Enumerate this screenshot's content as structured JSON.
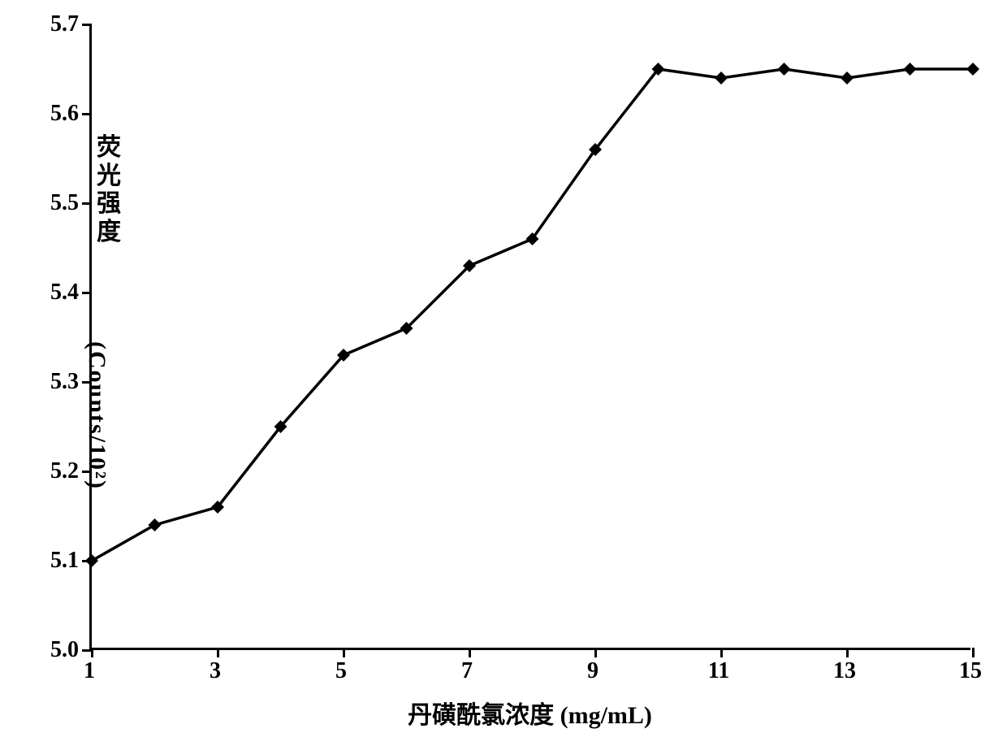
{
  "chart": {
    "type": "line",
    "background_color": "#ffffff",
    "axis_color": "#000000",
    "axis_width": 3,
    "tick_length": 12,
    "x": {
      "title": "丹磺酰氯浓度 (mg/mL)",
      "title_fontsize": 30,
      "min": 1,
      "max": 15,
      "tick_values": [
        1,
        3,
        5,
        7,
        9,
        11,
        13,
        15
      ],
      "tick_labels": [
        "1",
        "3",
        "5",
        "7",
        "9",
        "11",
        "13",
        "15"
      ],
      "label_fontsize": 28
    },
    "y": {
      "title_vertical": "荧光强度",
      "title_paren": "(Counts/10²)",
      "title_fontsize": 30,
      "min": 5.0,
      "max": 5.7,
      "tick_values": [
        5.0,
        5.1,
        5.2,
        5.3,
        5.4,
        5.5,
        5.6,
        5.7
      ],
      "tick_labels": [
        "5.0",
        "5.1",
        "5.2",
        "5.3",
        "5.4",
        "5.5",
        "5.6",
        "5.7"
      ],
      "label_fontsize": 28
    },
    "series": {
      "line_color": "#000000",
      "line_width": 3.5,
      "marker_shape": "diamond",
      "marker_fill": "#000000",
      "marker_size": 16,
      "x_values": [
        1,
        2,
        3,
        4,
        5,
        6,
        7,
        8,
        9,
        10,
        11,
        12,
        13,
        14,
        15
      ],
      "y_values": [
        5.1,
        5.14,
        5.16,
        5.25,
        5.33,
        5.36,
        5.43,
        5.46,
        5.56,
        5.65,
        5.64,
        5.65,
        5.64,
        5.65,
        5.65
      ]
    }
  }
}
